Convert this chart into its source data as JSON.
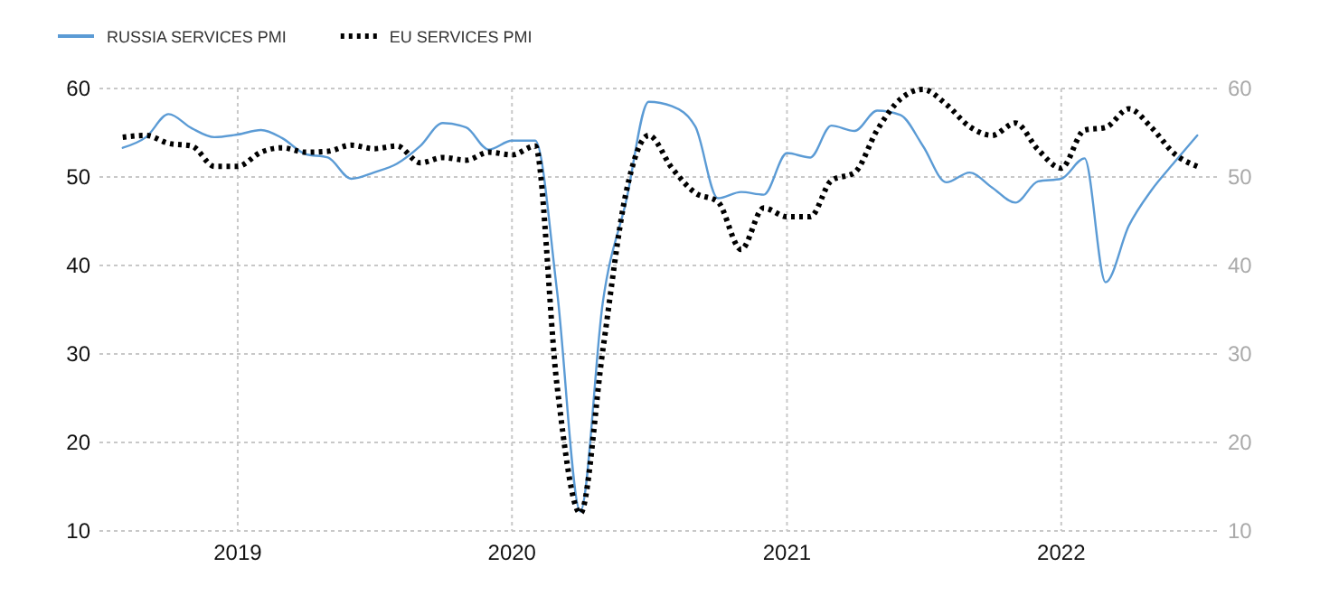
{
  "chart_data": {
    "type": "line",
    "x": [
      "2018-08",
      "2018-09",
      "2018-10",
      "2018-11",
      "2018-12",
      "2019-01",
      "2019-02",
      "2019-03",
      "2019-04",
      "2019-05",
      "2019-06",
      "2019-07",
      "2019-08",
      "2019-09",
      "2019-10",
      "2019-11",
      "2019-12",
      "2020-01",
      "2020-02",
      "2020-03",
      "2020-04",
      "2020-05",
      "2020-06",
      "2020-07",
      "2020-08",
      "2020-09",
      "2020-10",
      "2020-11",
      "2020-12",
      "2021-01",
      "2021-02",
      "2021-03",
      "2021-04",
      "2021-05",
      "2021-06",
      "2021-07",
      "2021-08",
      "2021-09",
      "2021-10",
      "2021-11",
      "2021-12",
      "2022-01",
      "2022-02",
      "2022-03",
      "2022-04",
      "2022-05",
      "2022-06",
      "2022-07"
    ],
    "series": [
      {
        "name": "RUSSIA SERVICES PMI",
        "color": "#5b9bd5",
        "line_style": "solid",
        "values": [
          53.3,
          54.5,
          57.1,
          55.5,
          54.5,
          54.8,
          55.3,
          54.4,
          52.6,
          52.2,
          49.8,
          50.5,
          51.5,
          53.5,
          56.1,
          55.6,
          53.1,
          54.1,
          54.1,
          37.1,
          12.2,
          35.9,
          47.3,
          58.5,
          58.0,
          55.7,
          47.6,
          48.3,
          48.0,
          52.7,
          52.2,
          55.8,
          55.2,
          57.5,
          57.0,
          53.5,
          49.4,
          50.5,
          48.8,
          47.1,
          49.5,
          49.8,
          52.1,
          38.1,
          44.5,
          48.5,
          51.7,
          54.7
        ]
      },
      {
        "name": "EU SERVICES PMI",
        "color": "#000000",
        "line_style": "dotted",
        "values": [
          54.5,
          54.7,
          53.8,
          53.5,
          51.2,
          51.2,
          52.8,
          53.3,
          52.8,
          52.9,
          53.6,
          53.2,
          53.5,
          51.6,
          52.2,
          51.9,
          52.8,
          52.5,
          53.5,
          26.4,
          12.0,
          30.5,
          48.3,
          54.7,
          51.0,
          48.2,
          47.2,
          41.8,
          46.5,
          45.5,
          45.5,
          49.6,
          50.5,
          55.3,
          58.8,
          59.9,
          58.2,
          55.7,
          54.7,
          56.1,
          53.1,
          51.0,
          55.3,
          55.6,
          57.7,
          55.6,
          52.6,
          51.2
        ]
      }
    ],
    "xlim": [
      "2018-07",
      "2022-08"
    ],
    "xticks": [
      {
        "value": "2019",
        "label": "2019"
      },
      {
        "value": "2020",
        "label": "2020"
      },
      {
        "value": "2021",
        "label": "2021"
      },
      {
        "value": "2022",
        "label": "2022"
      }
    ],
    "ylim": [
      10,
      60
    ],
    "yticks": [
      10,
      20,
      30,
      40,
      50,
      60
    ],
    "y2lim": [
      10,
      60
    ],
    "y2ticks": [
      10,
      20,
      30,
      40,
      50,
      60
    ],
    "grid": true,
    "legend": "top left",
    "marker": "none"
  }
}
